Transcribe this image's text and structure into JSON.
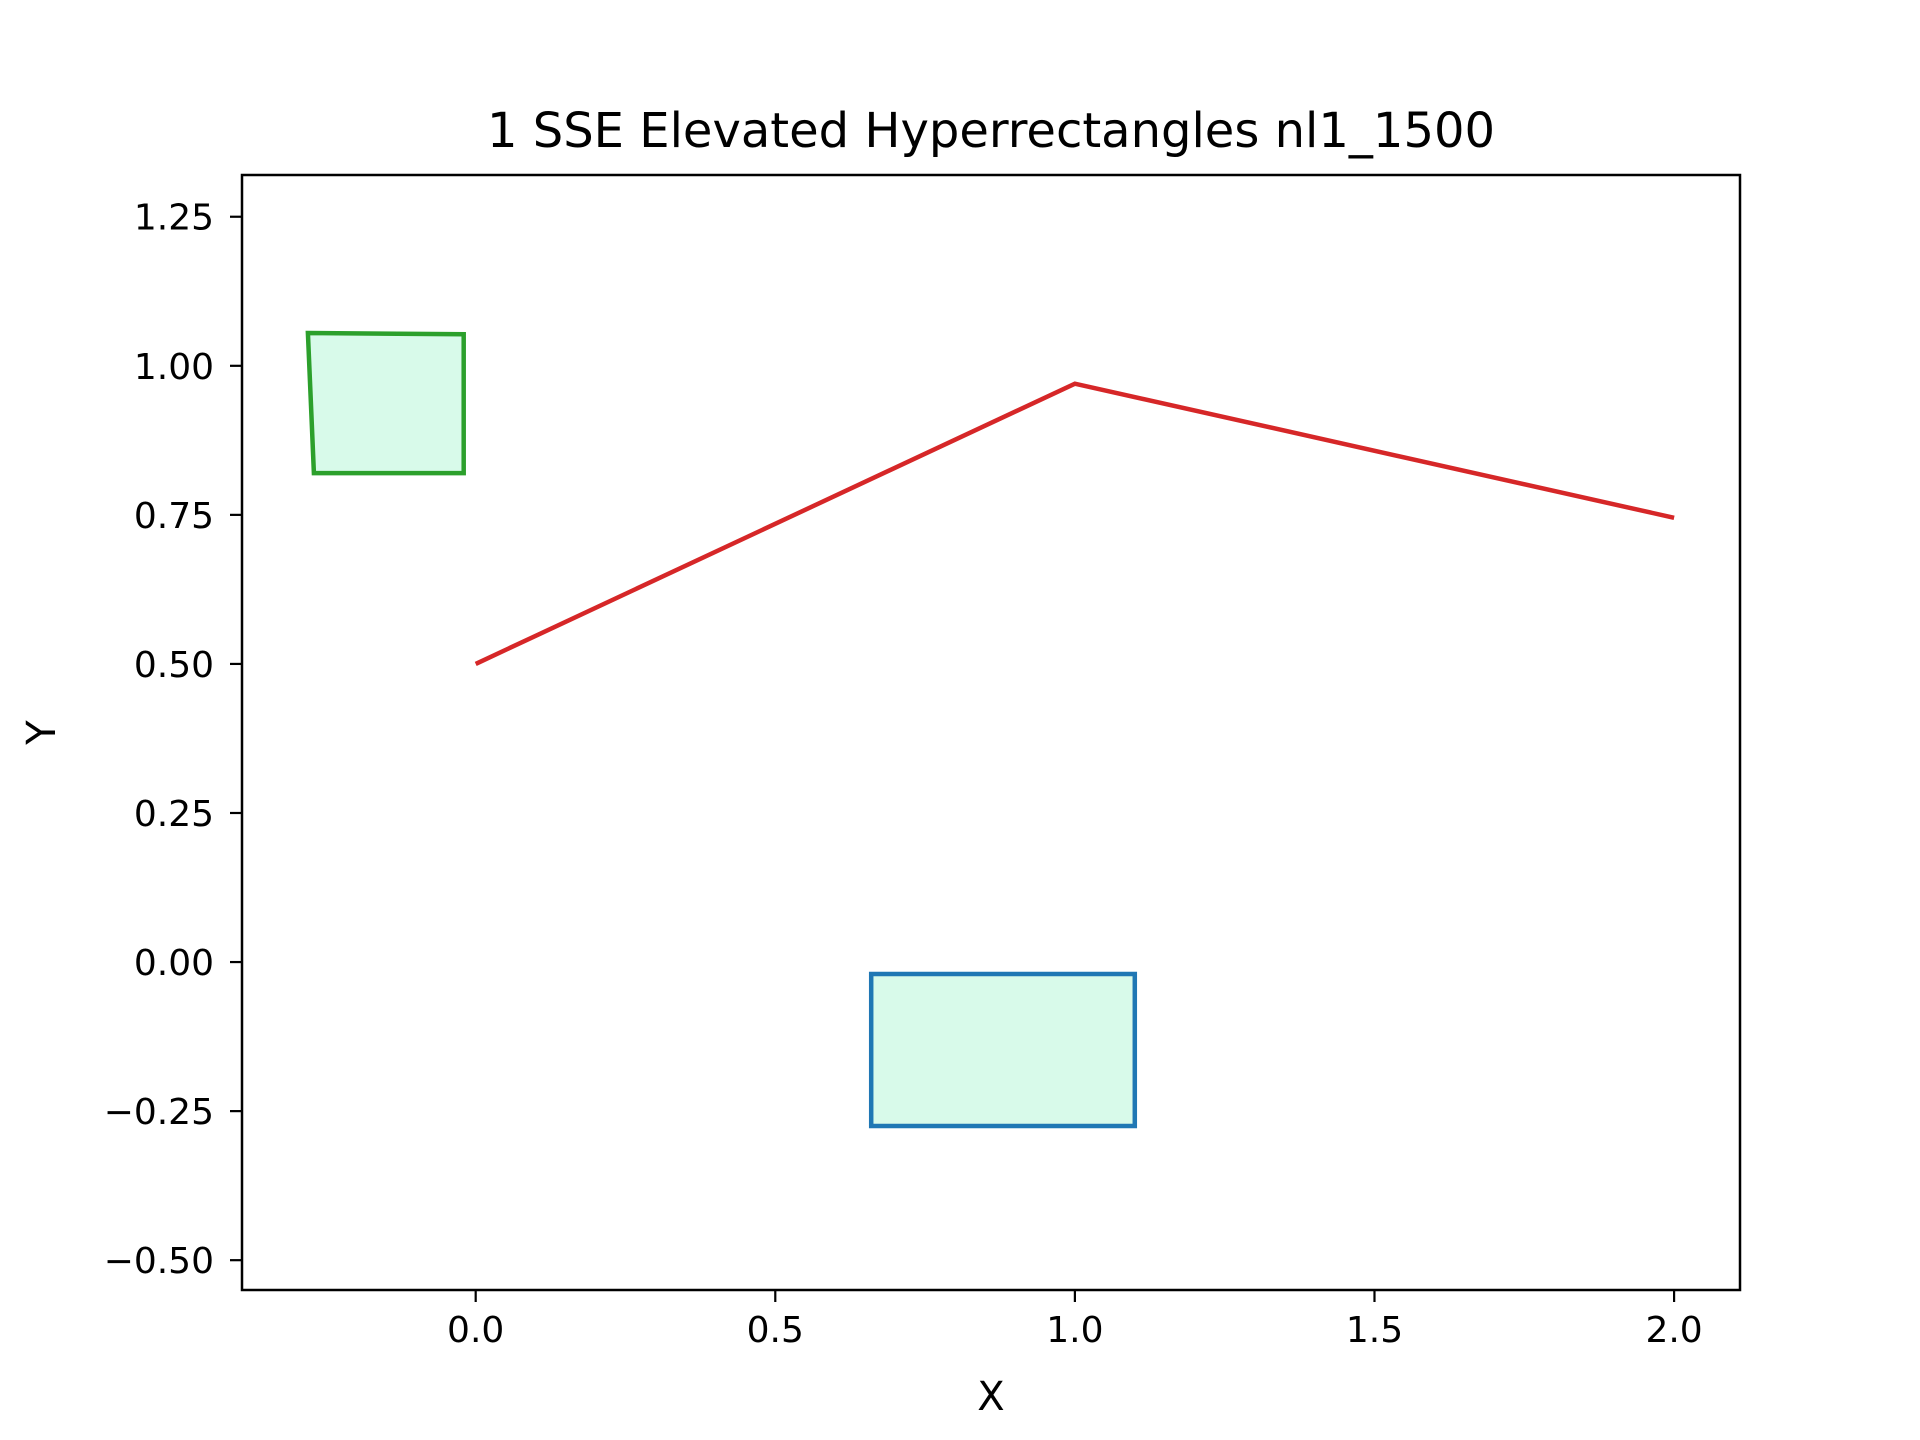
{
  "chart_data": {
    "type": "line",
    "title": "1 SSE Elevated Hyperrectangles nl1_1500",
    "xlabel": "X",
    "ylabel": "Y",
    "xlim": [
      -0.39,
      2.11
    ],
    "ylim": [
      -0.55,
      1.32
    ],
    "x_ticks": [
      0.0,
      0.5,
      1.0,
      1.5,
      2.0
    ],
    "x_tick_labels": [
      "0.0",
      "0.5",
      "1.0",
      "1.5",
      "2.0"
    ],
    "y_ticks": [
      -0.5,
      -0.25,
      0.0,
      0.25,
      0.5,
      0.75,
      1.0,
      1.25
    ],
    "y_tick_labels": [
      "−0.50",
      "−0.25",
      "0.00",
      "0.25",
      "0.50",
      "0.75",
      "1.00",
      "1.25"
    ],
    "grid": false,
    "series": [
      {
        "x": [
          0.0,
          1.0,
          2.0
        ],
        "y": [
          0.5,
          0.97,
          0.745
        ],
        "color": "#d62728"
      }
    ],
    "rectangles": [
      {
        "corners": [
          [
            -0.28,
            1.055
          ],
          [
            -0.02,
            1.053
          ],
          [
            -0.02,
            0.82
          ],
          [
            -0.27,
            0.82
          ]
        ],
        "edge_color": "#2ca02c",
        "fill_color": "#d8faea"
      },
      {
        "corners": [
          [
            0.66,
            -0.02
          ],
          [
            1.1,
            -0.02
          ],
          [
            1.1,
            -0.275
          ],
          [
            0.66,
            -0.275
          ]
        ],
        "edge_color": "#1f77b4",
        "fill_color": "#d8faea"
      }
    ]
  }
}
